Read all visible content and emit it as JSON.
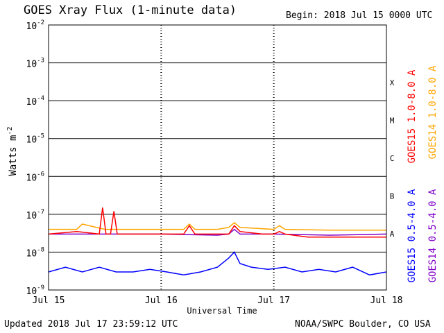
{
  "header": {
    "title": "GOES Xray Flux (1-minute data)",
    "begin": "Begin:  2018 Jul 15 0000 UTC"
  },
  "footer": {
    "updated": "Updated 2018 Jul 17 23:59:12 UTC",
    "source": "NOAA/SWPC Boulder, CO USA"
  },
  "chart_data": {
    "type": "line",
    "title": "GOES Xray Flux (1-minute data)",
    "xlabel": "Universal Time",
    "ylabel": "Watts m",
    "ylabel_superscript": "-2",
    "yscale": "log",
    "ylim": [
      1e-09,
      0.01
    ],
    "xlim_days": [
      0,
      3
    ],
    "x_ticks": [
      "Jul 15",
      "Jul 16",
      "Jul 17",
      "Jul 18"
    ],
    "y_ticks": [
      {
        "base": "10",
        "exp": "-9"
      },
      {
        "base": "10",
        "exp": "-8"
      },
      {
        "base": "10",
        "exp": "-7"
      },
      {
        "base": "10",
        "exp": "-6"
      },
      {
        "base": "10",
        "exp": "-5"
      },
      {
        "base": "10",
        "exp": "-4"
      },
      {
        "base": "10",
        "exp": "-3"
      },
      {
        "base": "10",
        "exp": "-2"
      }
    ],
    "flare_classes": [
      {
        "label": "A",
        "value": 1e-08
      },
      {
        "label": "B",
        "value": 1e-07
      },
      {
        "label": "C",
        "value": 1e-06
      },
      {
        "label": "M",
        "value": 1e-05
      },
      {
        "label": "X",
        "value": 0.0001
      }
    ],
    "grid": true,
    "series": [
      {
        "name": "GOES15 1.0-8.0 A",
        "color": "#ff0000",
        "x": [
          0.0,
          0.25,
          0.45,
          0.48,
          0.51,
          0.55,
          0.58,
          0.61,
          0.7,
          1.0,
          1.2,
          1.25,
          1.3,
          1.5,
          1.6,
          1.65,
          1.7,
          1.9,
          2.0,
          2.05,
          2.1,
          2.3,
          2.5,
          2.7,
          2.9,
          3.0
        ],
        "y": [
          3e-08,
          3.5e-08,
          3e-08,
          1.5e-07,
          3e-08,
          3e-08,
          1.2e-07,
          3e-08,
          3e-08,
          3e-08,
          3e-08,
          5e-08,
          3e-08,
          3e-08,
          3e-08,
          5e-08,
          3.5e-08,
          3e-08,
          3e-08,
          3.5e-08,
          3e-08,
          2.5e-08,
          2.5e-08,
          2.5e-08,
          2.5e-08,
          2.5e-08
        ]
      },
      {
        "name": "GOES14 1.0-8.0 A",
        "color": "#ffa500",
        "x": [
          0.0,
          0.25,
          0.3,
          0.5,
          0.8,
          1.0,
          1.2,
          1.25,
          1.3,
          1.5,
          1.6,
          1.65,
          1.7,
          2.0,
          2.05,
          2.1,
          2.5,
          3.0
        ],
        "y": [
          4e-08,
          4e-08,
          5.5e-08,
          4e-08,
          4e-08,
          4e-08,
          4e-08,
          5.5e-08,
          4e-08,
          4e-08,
          4.5e-08,
          6e-08,
          4.5e-08,
          4e-08,
          5e-08,
          4e-08,
          3.8e-08,
          3.8e-08
        ]
      },
      {
        "name": "GOES14 0.5-4.0 A",
        "color": "#8000c8",
        "x": [
          0.0,
          0.5,
          1.0,
          1.5,
          1.6,
          1.65,
          1.7,
          2.0,
          2.5,
          3.0
        ],
        "y": [
          3e-08,
          3e-08,
          3e-08,
          2.8e-08,
          3e-08,
          4e-08,
          3e-08,
          3e-08,
          2.8e-08,
          3e-08
        ]
      },
      {
        "name": "GOES15 0.5-4.0 A",
        "color": "#0000ff",
        "x": [
          0.0,
          0.15,
          0.3,
          0.45,
          0.6,
          0.75,
          0.9,
          1.05,
          1.2,
          1.35,
          1.5,
          1.6,
          1.65,
          1.7,
          1.8,
          1.95,
          2.1,
          2.25,
          2.4,
          2.55,
          2.7,
          2.85,
          3.0
        ],
        "y": [
          3e-09,
          4e-09,
          3e-09,
          4e-09,
          3e-09,
          3e-09,
          3.5e-09,
          3e-09,
          2.5e-09,
          3e-09,
          4e-09,
          7e-09,
          1e-08,
          5e-09,
          4e-09,
          3.5e-09,
          4e-09,
          3e-09,
          3.5e-09,
          3e-09,
          4e-09,
          2.5e-09,
          3e-09
        ]
      }
    ]
  }
}
